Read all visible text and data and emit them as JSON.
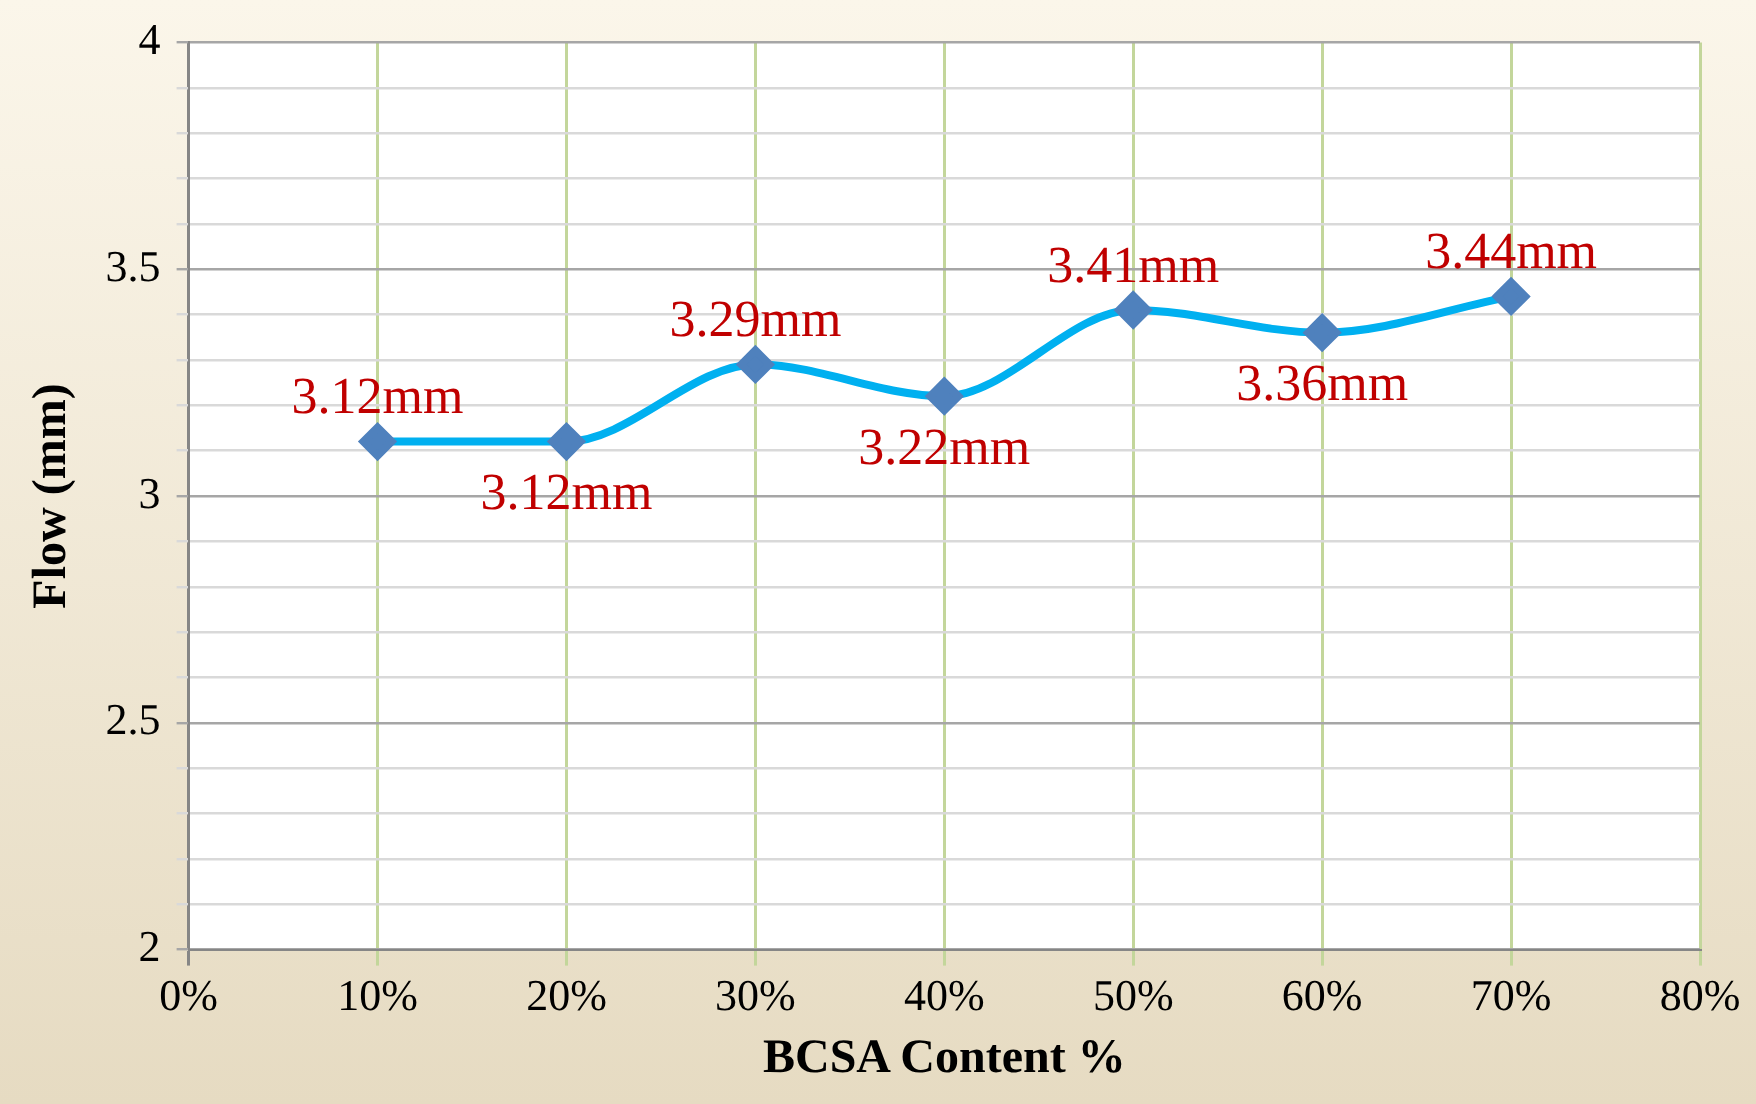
{
  "chart_data": {
    "type": "line",
    "xlabel": "BCSA Content %",
    "ylabel": "Flow (mm)",
    "x": [
      10,
      20,
      30,
      40,
      50,
      60,
      70
    ],
    "series": [
      {
        "color": "#00b0f0",
        "values": [
          3.12,
          3.12,
          3.29,
          3.22,
          3.41,
          3.36,
          3.44
        ],
        "value_labels": [
          "3.12mm",
          "3.12mm",
          "3.29mm",
          "3.22mm",
          "3.41mm",
          "3.36mm",
          "3.44mm"
        ]
      }
    ],
    "marker": "diamond",
    "line_style": "solid",
    "grid": true,
    "legend": false,
    "xlim": [
      0,
      80
    ],
    "xticks": [
      {
        "value": 0,
        "label": "0%"
      },
      {
        "value": 10,
        "label": "10%"
      },
      {
        "value": 20,
        "label": "20%"
      },
      {
        "value": 30,
        "label": "30%"
      },
      {
        "value": 40,
        "label": "40%"
      },
      {
        "value": 50,
        "label": "50%"
      },
      {
        "value": 60,
        "label": "60%"
      },
      {
        "value": 70,
        "label": "70%"
      },
      {
        "value": 80,
        "label": "80%"
      }
    ],
    "ylim": [
      2,
      4
    ],
    "yticks": [
      2,
      {
        "value": 2.1,
        "label": null
      },
      {
        "value": 2.2,
        "label": null
      },
      {
        "value": 2.3,
        "label": null
      },
      {
        "value": 2.4,
        "label": null
      },
      2.5,
      {
        "value": 2.6,
        "label": null
      },
      {
        "value": 2.7,
        "label": null
      },
      {
        "value": 2.8,
        "label": null
      },
      {
        "value": 2.9,
        "label": null
      },
      3,
      {
        "value": 3.1,
        "label": null
      },
      {
        "value": 3.2,
        "label": null
      },
      {
        "value": 3.3,
        "label": null
      },
      {
        "value": 3.4,
        "label": null
      },
      3.5,
      {
        "value": 3.6,
        "label": null
      },
      {
        "value": 3.7,
        "label": null
      },
      {
        "value": 3.8,
        "label": null
      },
      {
        "value": 3.9,
        "label": null
      },
      4
    ]
  }
}
